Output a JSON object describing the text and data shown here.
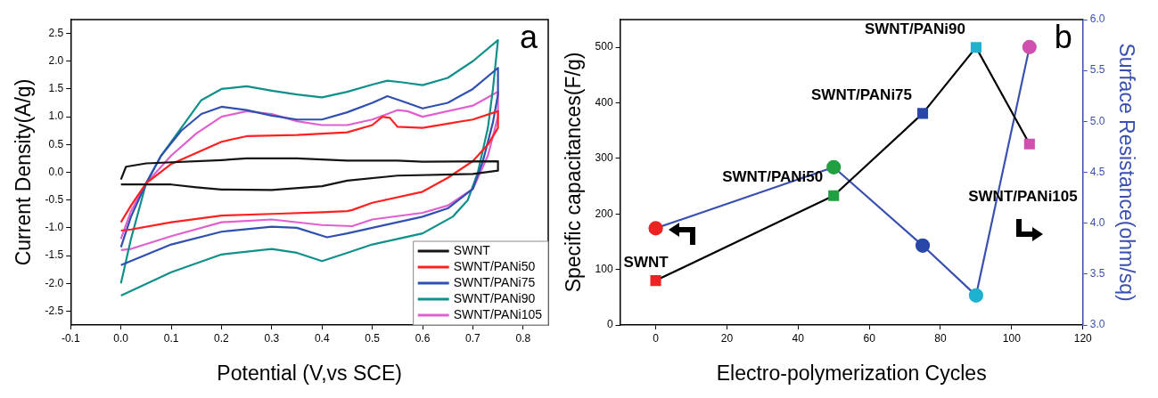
{
  "chart_data": [
    {
      "type": "line",
      "xlabel": "Potential (V,vs SCE)",
      "ylabel": "Current Density(A/g)",
      "annotations": [
        "a"
      ],
      "legend": "bottom right",
      "grid": false,
      "marker": "none",
      "xlim": [
        -0.1,
        0.85
      ],
      "xticks": [
        -0.1,
        {
          "value": 0,
          "label": "0.0"
        },
        0.1,
        0.2,
        0.3,
        0.4,
        0.5,
        0.6,
        0.7,
        0.8
      ],
      "ylim": [
        -2.75,
        2.75
      ],
      "yticks": [
        -2.5,
        {
          "value": -2,
          "label": "-2.0"
        },
        -1.5,
        {
          "value": -1,
          "label": "-1.0"
        },
        -0.5,
        {
          "value": 0,
          "label": "0.0"
        },
        0.5,
        {
          "value": 1,
          "label": "1.0"
        },
        1.5,
        {
          "value": 2,
          "label": "2.0"
        },
        2.5
      ],
      "series": [
        {
          "name": "SWNT",
          "color": "#141414",
          "x": [
            0,
            0.01,
            0.05,
            0.2,
            0.25,
            0.35,
            0.45,
            0.55,
            0.6,
            0.75,
            0.75,
            0.7,
            0.55,
            0.45,
            0.4,
            0.3,
            0.2,
            0.15,
            0.1,
            0
          ],
          "values": [
            -0.13,
            0.1,
            0.16,
            0.22,
            0.25,
            0.25,
            0.21,
            0.21,
            0.19,
            0.2,
            0.03,
            -0.03,
            -0.06,
            -0.15,
            -0.25,
            -0.32,
            -0.31,
            -0.27,
            -0.22,
            -0.22
          ]
        },
        {
          "name": "SWNT/PANi50",
          "color": "#ff2020",
          "x": [
            0,
            0.02,
            0.05,
            0.1,
            0.15,
            0.2,
            0.25,
            0.35,
            0.45,
            0.5,
            0.52,
            0.535,
            0.55,
            0.6,
            0.7,
            0.75,
            0.75,
            0.73,
            0.7,
            0.65,
            0.6,
            0.5,
            0.46,
            0.45,
            0.4,
            0.3,
            0.2,
            0.1,
            0.02,
            0
          ],
          "values": [
            -0.9,
            -0.6,
            -0.2,
            0.15,
            0.35,
            0.55,
            0.65,
            0.67,
            0.72,
            0.85,
            1.0,
            0.98,
            0.82,
            0.8,
            0.95,
            1.1,
            0.8,
            0.5,
            0.2,
            -0.1,
            -0.35,
            -0.55,
            -0.68,
            -0.7,
            -0.72,
            -0.75,
            -0.78,
            -0.9,
            -1.03,
            -1.05
          ]
        },
        {
          "name": "SWNT/PANi75",
          "color": "#3050b0",
          "x": [
            0,
            0.02,
            0.05,
            0.08,
            0.12,
            0.16,
            0.2,
            0.25,
            0.3,
            0.35,
            0.4,
            0.45,
            0.5,
            0.53,
            0.56,
            0.6,
            0.65,
            0.7,
            0.75,
            0.75,
            0.74,
            0.72,
            0.7,
            0.65,
            0.6,
            0.5,
            0.45,
            0.41,
            0.35,
            0.3,
            0.2,
            0.1,
            0
          ],
          "values": [
            -1.35,
            -0.8,
            -0.2,
            0.3,
            0.75,
            1.05,
            1.18,
            1.12,
            1.02,
            0.95,
            0.95,
            1.08,
            1.25,
            1.37,
            1.28,
            1.15,
            1.25,
            1.5,
            1.88,
            1.4,
            0.9,
            0.2,
            -0.3,
            -0.65,
            -0.8,
            -1.0,
            -1.1,
            -1.17,
            -1.0,
            -0.98,
            -1.07,
            -1.3,
            -1.67
          ]
        },
        {
          "name": "SWNT/PANi90",
          "color": "#10908a",
          "x": [
            0,
            0.02,
            0.05,
            0.08,
            0.12,
            0.16,
            0.2,
            0.25,
            0.3,
            0.35,
            0.4,
            0.45,
            0.5,
            0.53,
            0.56,
            0.6,
            0.65,
            0.7,
            0.75,
            0.74,
            0.73,
            0.71,
            0.69,
            0.66,
            0.6,
            0.5,
            0.45,
            0.4,
            0.35,
            0.3,
            0.2,
            0.1,
            0
          ],
          "values": [
            -2.0,
            -1.2,
            -0.2,
            0.3,
            0.8,
            1.3,
            1.5,
            1.55,
            1.47,
            1.4,
            1.35,
            1.45,
            1.58,
            1.65,
            1.62,
            1.57,
            1.7,
            2.0,
            2.38,
            1.5,
            0.8,
            0.0,
            -0.5,
            -0.8,
            -1.1,
            -1.3,
            -1.45,
            -1.6,
            -1.45,
            -1.38,
            -1.48,
            -1.8,
            -2.22
          ]
        },
        {
          "name": "SWNT/PANi105",
          "color": "#e060d0",
          "x": [
            0,
            0.02,
            0.05,
            0.1,
            0.15,
            0.2,
            0.25,
            0.3,
            0.35,
            0.4,
            0.45,
            0.5,
            0.53,
            0.55,
            0.57,
            0.6,
            0.7,
            0.75,
            0.75,
            0.73,
            0.7,
            0.65,
            0.6,
            0.5,
            0.46,
            0.4,
            0.3,
            0.2,
            0.1,
            0.02,
            0
          ],
          "values": [
            -1.2,
            -0.7,
            -0.2,
            0.3,
            0.7,
            1.0,
            1.1,
            1.05,
            0.92,
            0.85,
            0.85,
            0.95,
            1.05,
            1.12,
            1.1,
            1.0,
            1.2,
            1.45,
            1.0,
            0.3,
            -0.3,
            -0.6,
            -0.73,
            -0.85,
            -0.97,
            -0.95,
            -0.85,
            -0.9,
            -1.15,
            -1.38,
            -1.4
          ]
        }
      ]
    },
    {
      "type": "line",
      "xlabel": "Electro-polymerization Cycles",
      "ylabel": "Specific capacitances(F/g)",
      "y2label": "Surface Resistance(ohm/sq)",
      "grid": false,
      "legend": false,
      "annotations": [
        "b",
        {
          "text": "SWNT",
          "x": 0,
          "y": 80
        },
        {
          "text": "SWNT/PANi50",
          "x": 50,
          "y": 233
        },
        {
          "text": "SWNT/PANi75",
          "x": 75,
          "y": 381
        },
        {
          "text": "SWNT/PANi90",
          "x": 90,
          "y": 500
        },
        {
          "text": "SWNT/PANi105",
          "x": 105,
          "y": 326
        }
      ],
      "xlim": [
        -10,
        120
      ],
      "xticks": [
        0,
        20,
        40,
        60,
        80,
        100,
        120
      ],
      "ylim": [
        0,
        550
      ],
      "yticks": [
        0,
        100,
        200,
        300,
        400,
        500
      ],
      "y2lim": [
        3,
        6
      ],
      "y2ticks": [
        {
          "value": 3,
          "label": "3.0"
        },
        3.5,
        {
          "value": 4,
          "label": "4.0"
        },
        4.5,
        {
          "value": 5,
          "label": "5.0"
        },
        5.5,
        {
          "value": 6,
          "label": "6.0"
        }
      ],
      "series": [
        {
          "color": "#000000",
          "marker": "square",
          "x": [
            0,
            50,
            75,
            90,
            105
          ],
          "values": [
            80,
            233,
            381,
            500,
            326
          ],
          "colors": [
            "#ee2222",
            "#20a040",
            "#2848a8",
            "#20b0d0",
            "#d050b0"
          ]
        },
        {
          "color": "#3a50b0",
          "marker": "circle",
          "axis": "y2",
          "x": [
            0,
            50,
            75,
            90,
            105
          ],
          "values": [
            3.95,
            4.55,
            3.78,
            3.29,
            5.73
          ],
          "colors": [
            "#ee2222",
            "#20a040",
            "#2848a8",
            "#20b0d0",
            "#d050b0"
          ]
        }
      ]
    }
  ]
}
